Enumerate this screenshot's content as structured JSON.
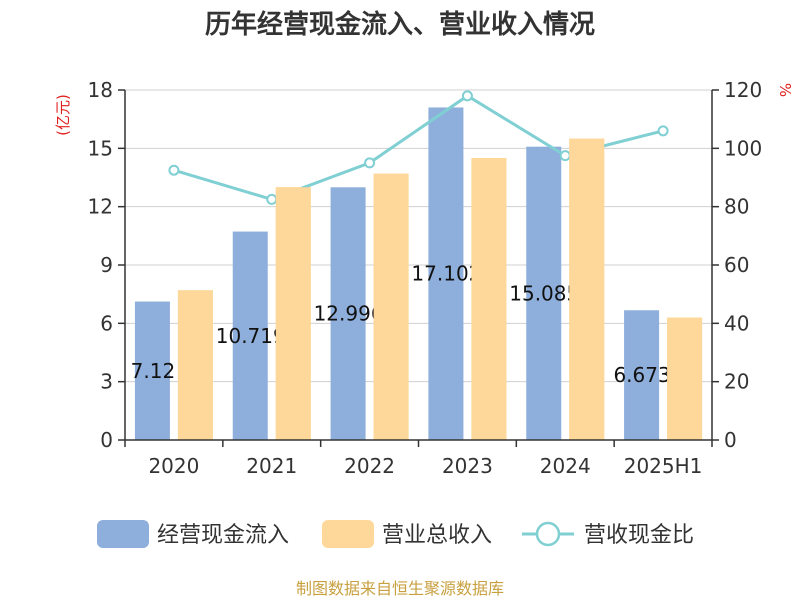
{
  "chart_data": {
    "type": "bar",
    "title": "历年经营现金流入、营业收入情况",
    "categories": [
      "2020",
      "2021",
      "2022",
      "2023",
      "2024",
      "2025H1"
    ],
    "series": [
      {
        "name": "经营现金流入",
        "type": "bar",
        "axis": "left",
        "color": "#8eaedb",
        "values": [
          7.12,
          10.719,
          12.996,
          17.102,
          15.085,
          6.673
        ]
      },
      {
        "name": "营业总收入",
        "type": "bar",
        "axis": "left",
        "color": "#fdd89a",
        "values": [
          7.7,
          13.0,
          13.7,
          14.5,
          15.5,
          6.3
        ]
      },
      {
        "name": "营收现金比",
        "type": "line",
        "axis": "right",
        "color": "#7fcfd3",
        "values": [
          92.5,
          82.5,
          95.0,
          118.0,
          97.5,
          106.0
        ]
      }
    ],
    "data_labels": [
      "7.12",
      "10.719",
      "12.996",
      "17.102",
      "15.085",
      "6.673"
    ],
    "y_left": {
      "unit": "(亿元)",
      "range": [
        0,
        18
      ],
      "ticks": [
        "0",
        "3",
        "6",
        "9",
        "12",
        "15",
        "18"
      ]
    },
    "y_right": {
      "unit": "%",
      "range": [
        0,
        120
      ],
      "ticks": [
        "0",
        "20",
        "40",
        "60",
        "80",
        "100",
        "120"
      ]
    },
    "grid": true,
    "legend": {
      "position": "bottom"
    },
    "unit_color": "#e02020",
    "source": "制图数据来自恒生聚源数据库",
    "source_color": "#c8a040"
  }
}
